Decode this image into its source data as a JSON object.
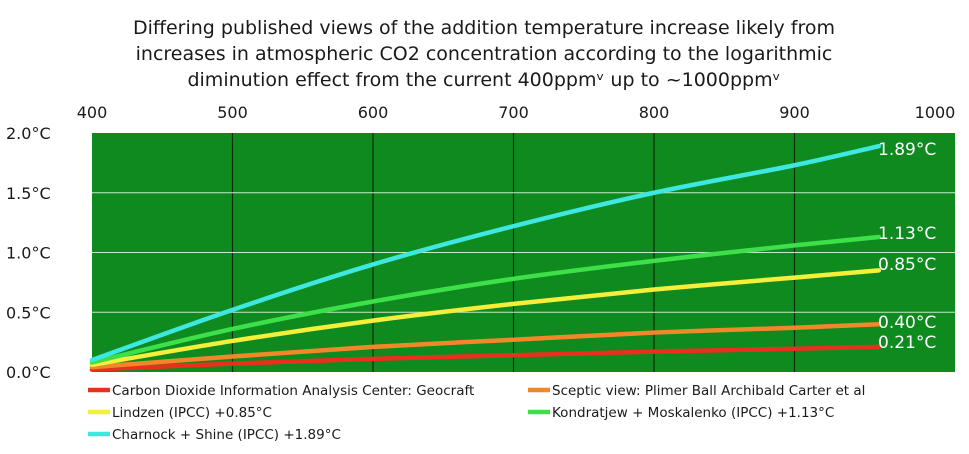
{
  "chart_data": {
    "type": "line",
    "title_lines": [
      "Differing published views of the addition temperature increase likely from",
      "increases in atmospheric CO2 concentration according to the logarithmic",
      "diminution effect from the current 400ppmᵛ up to ~1000ppmᵛ"
    ],
    "x_ticks": [
      "400",
      "500",
      "600",
      "700",
      "800",
      "900",
      "1000"
    ],
    "y_ticks": [
      "0.0°C",
      "0.5°C",
      "1.0°C",
      "1.5°C",
      "2.0°C"
    ],
    "xlim": [
      400,
      1000
    ],
    "ylim": [
      0,
      2.0
    ],
    "x_axis_position": "top",
    "grid": true,
    "background_color": "#0e8a1f",
    "series": [
      {
        "name": "Carbon Dioxide Information Analysis Center:  Geocraft",
        "color": "#e8301c",
        "end_value": 0.21,
        "end_label": "0.21°C",
        "x": [
          400,
          500,
          600,
          700,
          800,
          900,
          960
        ],
        "y": [
          0.02,
          0.07,
          0.11,
          0.14,
          0.17,
          0.195,
          0.21
        ]
      },
      {
        "name": "Sceptic view:  Plimer Ball Archibald Carter et al",
        "color": "#f0882a",
        "end_value": 0.4,
        "end_label": "0.40°C",
        "x": [
          400,
          500,
          600,
          700,
          800,
          900,
          960
        ],
        "y": [
          0.04,
          0.13,
          0.21,
          0.27,
          0.33,
          0.37,
          0.4
        ]
      },
      {
        "name": "Lindzen (IPCC)  +0.85°C",
        "color": "#f4ef3a",
        "end_value": 0.85,
        "end_label": "0.85°C",
        "x": [
          400,
          500,
          600,
          700,
          800,
          900,
          960
        ],
        "y": [
          0.06,
          0.26,
          0.43,
          0.57,
          0.69,
          0.79,
          0.85
        ]
      },
      {
        "name": "Kondratjew + Moskalenko (IPCC)  +1.13°C",
        "color": "#3ee04a",
        "end_value": 1.13,
        "end_label": "1.13°C",
        "x": [
          400,
          500,
          600,
          700,
          800,
          900,
          960
        ],
        "y": [
          0.08,
          0.36,
          0.59,
          0.78,
          0.93,
          1.06,
          1.13
        ]
      },
      {
        "name": "Charnock + Shine (IPCC)  +1.89°C",
        "color": "#3ee8e0",
        "end_value": 1.89,
        "end_label": "1.89°C",
        "x": [
          400,
          500,
          600,
          700,
          800,
          900,
          960
        ],
        "y": [
          0.1,
          0.52,
          0.9,
          1.22,
          1.5,
          1.73,
          1.89
        ]
      }
    ]
  }
}
